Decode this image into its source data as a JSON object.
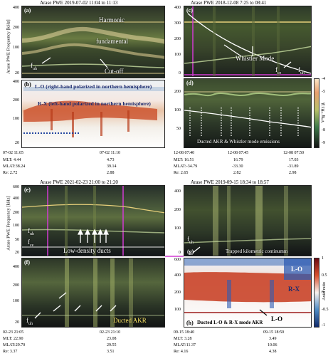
{
  "top_left": {
    "title": "Arase PWE 2019-07-02 11:04 to 11:13",
    "ylabel": "Arase PWE Frequency [kHz]",
    "panel_a": {
      "label": "(a)",
      "yticks": [
        "400",
        "200",
        "100",
        "20"
      ],
      "ann_harmonic": "Harmonic",
      "ann_fundamental": "fundamental",
      "ann_fuh": "f",
      "ann_fuh_sub": "uh",
      "ann_cutoff": "Cut-off"
    },
    "panel_b": {
      "label": "(b)",
      "yticks": [
        "400",
        "200",
        "100",
        "20"
      ],
      "ann_lo": "L-O (right-hand polarized in northern hemisphere)",
      "ann_rx": "R-X (left-hand polarized in northern hemisphere)"
    },
    "footer": {
      "t1": "07-02 11:05",
      "t2": "07-02 11:10",
      "mlt": "MLT: 4.44",
      "mlt2": "4.73",
      "mlat": "MLAT:38.24",
      "mlat2": "39.14",
      "re": "Re:  2.72",
      "re2": "2.88"
    }
  },
  "top_right": {
    "title": "Arase PWE 2018-12-08 7:25 to 08:41",
    "panel_c": {
      "label": "(c)",
      "yticks": [
        "400",
        "300",
        "200",
        "100",
        "0"
      ],
      "ann_whistler": "Whistler Mode",
      "ann_fce": "f",
      "ann_fce_sub": "ce",
      "ann_fuh": "f",
      "ann_fuh_sub": "uh"
    },
    "panel_d": {
      "label": "(d)",
      "yticks": [
        "200",
        "100",
        "50"
      ],
      "ann_ducted": "Ducted AKR & Whistler mode emissions"
    },
    "cbar": {
      "label": "V²m⁻²Hz⁻¹",
      "ticks": [
        "-4",
        "-5",
        "-6",
        "-7",
        "-8",
        "-9"
      ]
    },
    "footer": {
      "t1": "12-08 07:40",
      "t2": "12-08 07:45",
      "t3": "12-08 07:50",
      "mlt": "MLT: 16.51",
      "mlt2": "16.79",
      "mlt3": "17.03",
      "mlat": "MLAT:-34.79",
      "mlat2": "-33.30",
      "mlat3": "-31.89",
      "re": "Re:  2.65",
      "re2": "2.82",
      "re3": "2.98"
    }
  },
  "bottom_left": {
    "title": "Arase PWE 2021-02-23 21:00 to 21:20",
    "ylabel": "Arase PWE Frequency [kHz]",
    "panel_e": {
      "label": "(e)",
      "yticks": [
        "600",
        "400",
        "200",
        "100",
        "50",
        "20"
      ],
      "ann_fuh": "f",
      "ann_fuh_sub": "uh",
      "ann_fce": "f",
      "ann_fce_sub": "ce",
      "ann_duct": "Low-density ducts"
    },
    "panel_f": {
      "label": "(f)",
      "yticks": [
        "400",
        "200",
        "100",
        "20"
      ],
      "ann_fuh": "f",
      "ann_fuh_sub": "uh",
      "ann_ducted": "Ducted AKR"
    },
    "footer": {
      "t1": "02-23 21:05",
      "t2": "02-23 21:10",
      "mlt": "MLT: 22.90",
      "mlt2": "23.08",
      "mlat": "MLAT:29.70",
      "mlat2": "29.55",
      "re": "Re:  3.37",
      "re2": "3.51"
    }
  },
  "bottom_right": {
    "title": "Arase PWE 2019-09-15 18:34 to 18:57",
    "panel_g": {
      "label": "(g)",
      "yticks": [
        "400",
        "200",
        "100",
        "0"
      ],
      "ann_fuh": "f",
      "ann_fuh_sub": "uh",
      "ann_trapped": "Trapped kilometric continumm"
    },
    "panel_h": {
      "label": "(h)",
      "yticks": [
        "600",
        "400",
        "200",
        "100"
      ],
      "ann_lo": "L-O",
      "ann_rx": "R-X",
      "ann_lo2": "L-O",
      "ann_ducted": "Ducted L-O & R-X mode AKR"
    },
    "cbar": {
      "label": "Axial ratio",
      "ticks": [
        "1",
        "0.5",
        "0",
        "-0.5",
        "-1"
      ]
    },
    "footer": {
      "t1": "09-15 18:40",
      "t2": "09-15 18:50",
      "mlt": "MLT: 3.28",
      "mlt2": "3.49",
      "mlat": "MLAT:11.37",
      "mlat2": "10.06",
      "re": "Re:  4.16",
      "re2": "4.38"
    }
  }
}
